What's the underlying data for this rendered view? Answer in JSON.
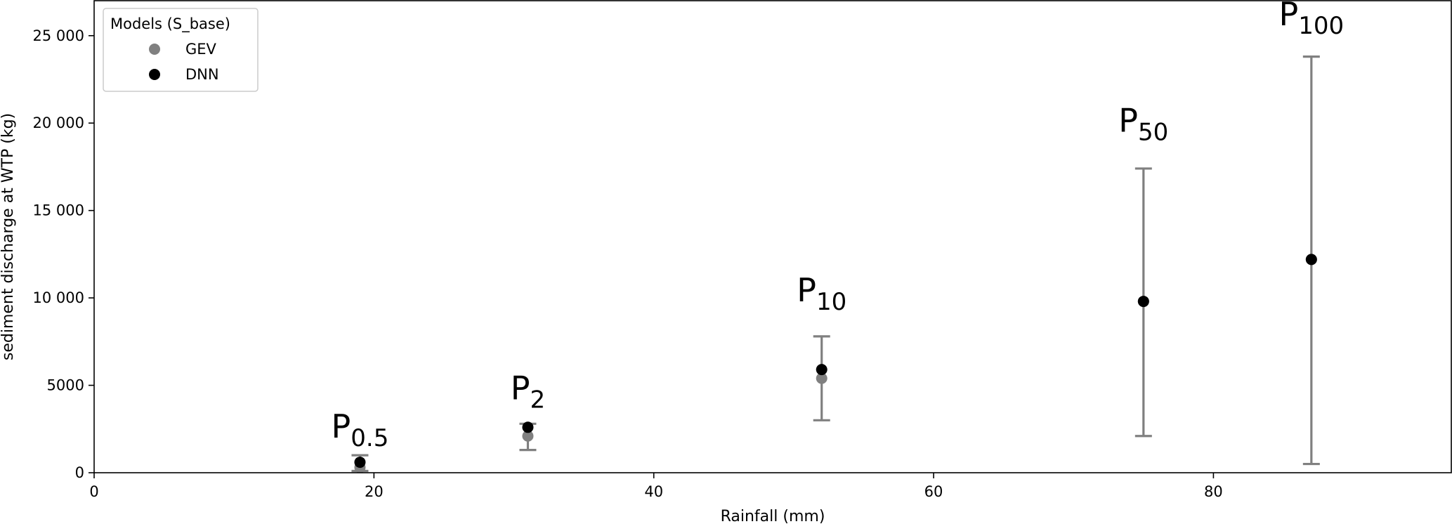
{
  "chart_data": {
    "type": "scatter",
    "title": "",
    "xlabel": "Rainfall (mm)",
    "ylabel": "sediment discharge at WTP (kg)",
    "xlim": [
      0,
      97
    ],
    "ylim": [
      0,
      27000
    ],
    "xticks": [
      0,
      20,
      40,
      60,
      80
    ],
    "yticks": [
      0,
      5000,
      10000,
      15000,
      20000,
      25000
    ],
    "xtick_labels": [
      "0",
      "20",
      "40",
      "60",
      "80"
    ],
    "ytick_labels": [
      "0",
      "5000",
      "10 000",
      "15 000",
      "20 000",
      "25 000"
    ],
    "grid": false,
    "legend": {
      "title": "Models (S_base)",
      "location": "upper-left",
      "entries": [
        "GEV",
        "DNN"
      ]
    },
    "series": [
      {
        "name": "GEV",
        "color": "#808080",
        "x": [
          19,
          31,
          52,
          75,
          87
        ],
        "y": [
          300,
          2100,
          5400,
          9800,
          12200
        ],
        "err_low": [
          100,
          1300,
          3000,
          2100,
          500
        ],
        "err_high": [
          1000,
          2800,
          7800,
          17400,
          23800
        ]
      },
      {
        "name": "DNN",
        "color": "#000000",
        "x": [
          19,
          31,
          52,
          75,
          87
        ],
        "y": [
          600,
          2600,
          5900,
          9800,
          12200
        ]
      }
    ],
    "annotations": [
      {
        "main": "P",
        "sub": "0.5",
        "x": 19,
        "y": 2000
      },
      {
        "main": "P",
        "sub": "2",
        "x": 31,
        "y": 4200
      },
      {
        "main": "P",
        "sub": "10",
        "x": 52,
        "y": 9800
      },
      {
        "main": "P",
        "sub": "50",
        "x": 75,
        "y": 19500
      },
      {
        "main": "P",
        "sub": "100",
        "x": 87,
        "y": 25600
      }
    ]
  }
}
